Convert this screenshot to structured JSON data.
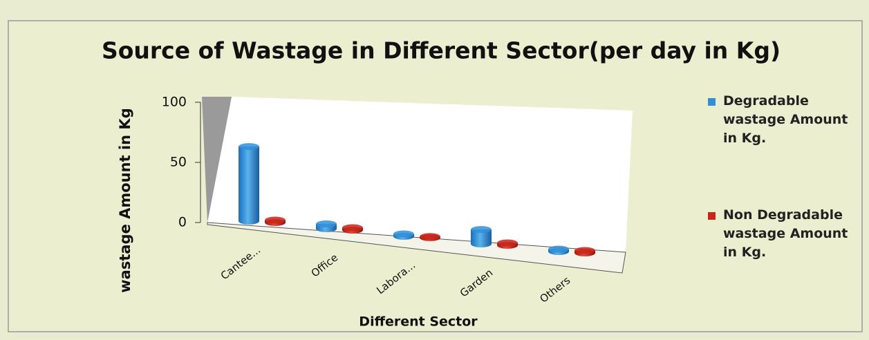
{
  "chart_data": {
    "type": "bar",
    "title": "Source of Wastage in Different Sector(per day in Kg)",
    "x_label": "Different Sector",
    "y_label": "wastage Amount  in Kg",
    "categories": [
      "Cantee...",
      "Office",
      "Labora...",
      "Garden",
      "Others"
    ],
    "series": [
      {
        "name": "Degradable wastage Amount in Kg.",
        "color": "#2f8fd8",
        "values": [
          62,
          4,
          2,
          12,
          2
        ]
      },
      {
        "name": "Non Degradable wastage Amount in Kg.",
        "color": "#c8261a",
        "values": [
          2,
          2,
          1,
          2,
          2
        ]
      }
    ],
    "ylim": [
      0,
      100
    ],
    "yticks": [
      0,
      50,
      100
    ]
  }
}
